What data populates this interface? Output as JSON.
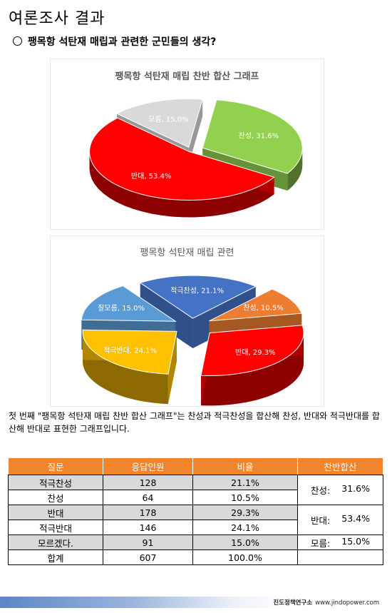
{
  "heading": "여론조사 결과",
  "question": "팽목항 석탄재 매립과 관련한 군민들의 생각?",
  "chart_data": [
    {
      "type": "pie",
      "title": "팽목항 석탄재 매립 찬반 합산 그래프",
      "slices": [
        {
          "label": "찬성",
          "value": 31.6,
          "color": "#92d050"
        },
        {
          "label": "반대",
          "value": 53.4,
          "color": "#ff0000"
        },
        {
          "label": "모름",
          "value": 15.0,
          "color": "#d9d9d9"
        }
      ]
    },
    {
      "type": "pie",
      "title": "팽목항 석탄재 매립 관련",
      "slices": [
        {
          "label": "적극찬성",
          "value": 21.1,
          "color": "#4472c4"
        },
        {
          "label": "찬성",
          "value": 10.5,
          "color": "#ed7d31"
        },
        {
          "label": "반대",
          "value": 29.3,
          "color": "#ff0000"
        },
        {
          "label": "적극반대",
          "value": 24.1,
          "color": "#ffc000"
        },
        {
          "label": "잘모름",
          "value": 15.0,
          "color": "#5b9bd5"
        }
      ]
    }
  ],
  "description": "첫 번째 \"팽목항 석탄재 매립 찬반 합산 그래프\"는 찬성과 적극찬성을 합산해 찬성, 반대와 적극반대를 합산해 반대로 표현한 그래프입니다.",
  "table": {
    "headers": [
      "질문",
      "응답인원",
      "비율",
      "찬반합산"
    ],
    "rows": [
      {
        "label": "적극찬성",
        "count": "128",
        "ratio": "21.1%"
      },
      {
        "label": "찬성",
        "count": "64",
        "ratio": "10.5%"
      },
      {
        "label": "반대",
        "count": "178",
        "ratio": "29.3%"
      },
      {
        "label": "적극반대",
        "count": "146",
        "ratio": "24.1%"
      },
      {
        "label": "모르겠다.",
        "count": "91",
        "ratio": "15.0%"
      },
      {
        "label": "합계",
        "count": "607",
        "ratio": "100.0%"
      }
    ],
    "sums": [
      {
        "label": "찬성:",
        "value": "31.6%"
      },
      {
        "label": "반대:",
        "value": "53.4%"
      },
      {
        "label": "모름:",
        "value": "15.0%"
      }
    ]
  },
  "footer": {
    "org": "진도정책연구소",
    "url": "www.jindopower.com"
  }
}
